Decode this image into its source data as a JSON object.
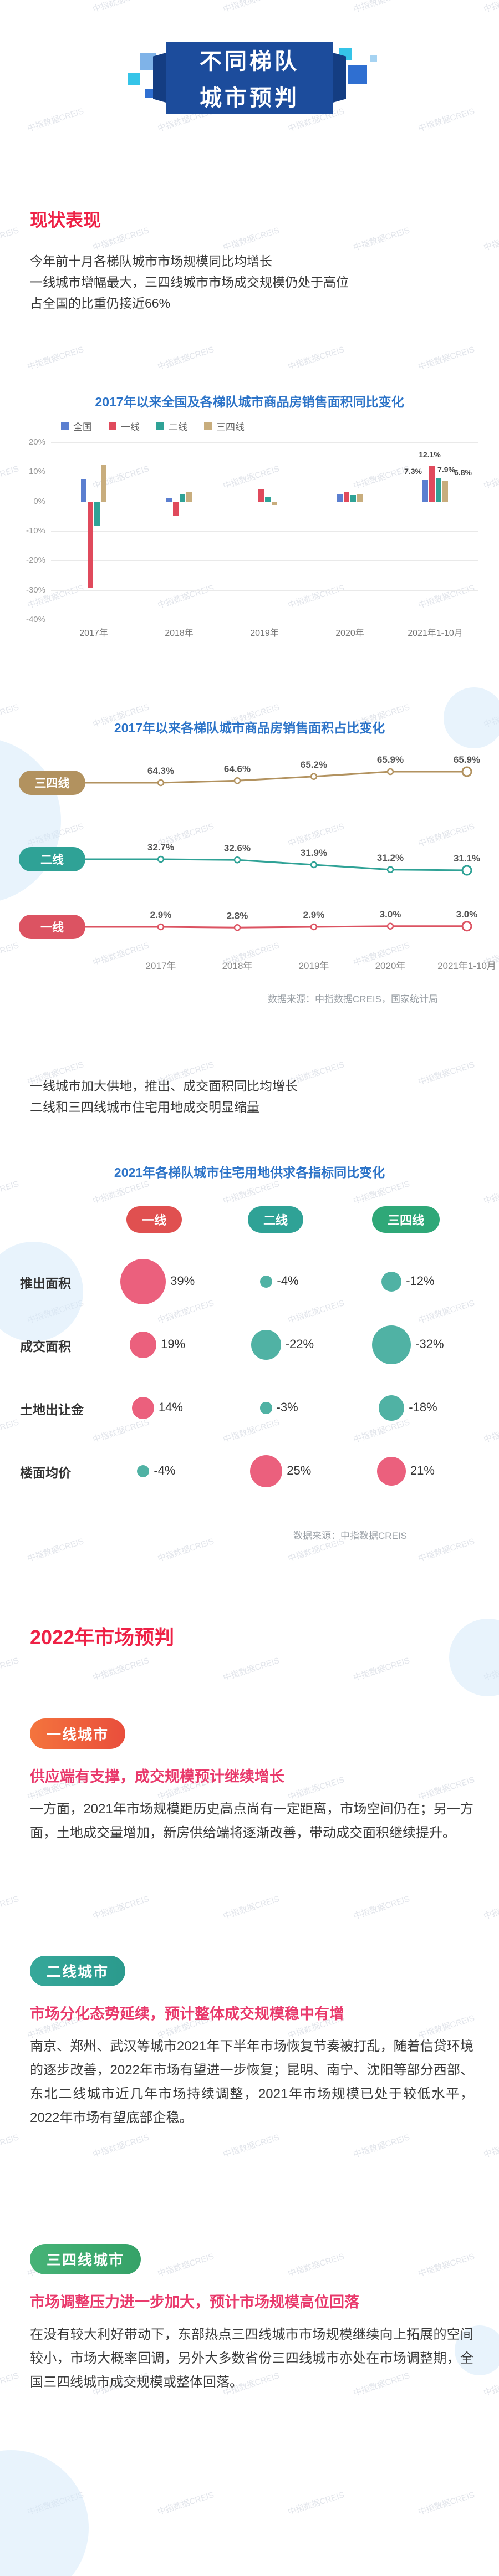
{
  "watermark": "中指数据CREIS",
  "colors": {
    "ribbon_blue": "#1c4c9c",
    "chart_title_blue": "#2d74c8",
    "section_title_red": "#ee2146",
    "headline_pink": "#e93a6c",
    "positive_red": "#e84a6b",
    "negative_teal": "#38a797"
  },
  "header": {
    "title_line1": "不同梯队",
    "title_line2": "城市预判"
  },
  "status_section": {
    "title": "现状表现",
    "paragraph_lines": [
      "今年前十月各梯队城市市场规模同比均增长",
      "一线城市增幅最大，三四线城市市场成交规模仍处于高位",
      "占全国的比重仍接近66%"
    ]
  },
  "land_section": {
    "paragraph_lines": [
      "一线城市加大供地，推出、成交面积同比均增长",
      "二线和三四线城市住宅用地成交明显缩量"
    ]
  },
  "chart_data": [
    {
      "type": "bar",
      "title": "2017年以来全国及各梯队城市商品房销售面积同比变化",
      "categories": [
        "2017年",
        "2018年",
        "2019年",
        "2020年",
        "2021年1-10月"
      ],
      "series": [
        {
          "name": "全国",
          "color": "#5b7fd0",
          "values": [
            7.7,
            1.3,
            -0.1,
            2.6,
            7.3
          ]
        },
        {
          "name": "一线",
          "color": "#e04a5c",
          "values": [
            -29.3,
            -4.8,
            4.1,
            3.1,
            12.1
          ]
        },
        {
          "name": "二线",
          "color": "#2fa296",
          "values": [
            -8.2,
            2.6,
            1.4,
            2.1,
            7.9
          ]
        },
        {
          "name": "三四线",
          "color": "#c8ad7d",
          "values": [
            12.4,
            3.4,
            -1.2,
            2.4,
            6.8
          ]
        }
      ],
      "ylim": [
        -40,
        20
      ],
      "ytick_step": 10,
      "grid": true,
      "legend_position": "top"
    },
    {
      "type": "line",
      "title": "2017年以来各梯队城市商品房销售面积占比变化",
      "categories": [
        "2017年",
        "2018年",
        "2019年",
        "2020年",
        "2021年1-10月"
      ],
      "series": [
        {
          "name": "三四线",
          "color": "#b2925f",
          "values": [
            64.3,
            64.6,
            65.2,
            65.9,
            65.9
          ]
        },
        {
          "name": "二线",
          "color": "#2fa296",
          "values": [
            32.7,
            32.6,
            31.9,
            31.2,
            31.1
          ]
        },
        {
          "name": "一线",
          "color": "#dc5362",
          "values": [
            2.9,
            2.8,
            2.9,
            3.0,
            3.0
          ]
        }
      ],
      "value_suffix": "%",
      "source": "数据来源：中指数据CREIS，国家统计局"
    },
    {
      "type": "table",
      "title": "2021年各梯队城市住宅用地供求各指标同比变化",
      "columns": [
        {
          "name": "一线",
          "color": "#e05050"
        },
        {
          "name": "二线",
          "color": "#2fa296"
        },
        {
          "name": "三四线",
          "color": "#2fa878"
        }
      ],
      "rows": [
        {
          "label": "推出面积",
          "values": [
            39,
            -4,
            -12
          ]
        },
        {
          "label": "成交面积",
          "values": [
            19,
            -22,
            -32
          ]
        },
        {
          "label": "土地出让金",
          "values": [
            14,
            -3,
            -18
          ]
        },
        {
          "label": "楼面均价",
          "values": [
            -4,
            25,
            21
          ]
        }
      ],
      "value_suffix": "%",
      "source": "数据来源：中指数据CREIS"
    }
  ],
  "forecast_section": {
    "title": "2022年市场预判",
    "blocks": [
      {
        "pill": "一线城市",
        "pill_color": "#f4743d",
        "pill_color2": "#e94e3c",
        "headline": "供应端有支撑，成交规模预计继续增长",
        "body": "一方面，2021年市场规模距历史高点尚有一定距离，市场空间仍在；另一方面，土地成交量增加，新房供给端将逐渐改善，带动成交面积继续提升。"
      },
      {
        "pill": "二线城市",
        "pill_color": "#36a89a",
        "pill_color2": "#2b9a8d",
        "headline": "市场分化态势延续，预计整体成交规模稳中有增",
        "body": "南京、郑州、武汉等城市2021年下半年市场恢复节奏被打乱，随着信贷环境的逐步改善，2022年市场有望进一步恢复；昆明、南宁、沈阳等部分西部、东北二线城市近几年市场持续调整，2021年市场规模已处于较低水平，2022年市场有望底部企稳。"
      },
      {
        "pill": "三四线城市",
        "pill_color": "#46b377",
        "pill_color2": "#35a268",
        "headline": "市场调整压力进一步加大，预计市场规模高位回落",
        "body": "在没有较大利好带动下，东部热点三四线城市市场规模继续向上拓展的空间较小，市场大概率回调，另外大多数省份三四线城市亦处在市场调整期，全国三四线城市成交规模或整体回落。"
      }
    ]
  }
}
